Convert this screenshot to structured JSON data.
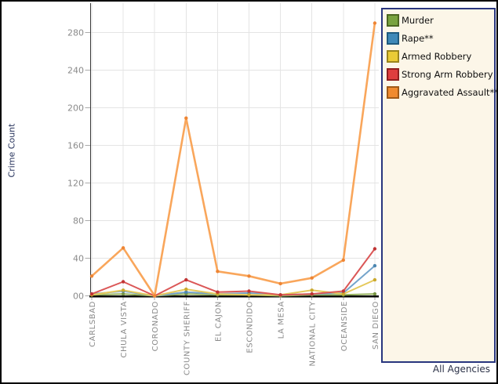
{
  "chart_data": {
    "type": "line",
    "title": "",
    "xlabel": "",
    "ylabel": "Crime Count",
    "categories": [
      "CARLSBAD",
      "CHULA VISTA",
      "CORONADO",
      "COUNTY SHERIFF",
      "EL CAJON",
      "ESCONDIDO",
      "LA MESA",
      "NATIONAL CITY",
      "OCEANSIDE",
      "SAN DIEGO"
    ],
    "series": [
      {
        "name": "Murder",
        "line_color": "#94B05C",
        "marker_color": "#769343",
        "legend_fill": "#79A33F",
        "legend_border": "#4C6722",
        "values": [
          1,
          2,
          0,
          2,
          1,
          1,
          0,
          1,
          1,
          2
        ]
      },
      {
        "name": "Rape**",
        "line_color": "#74A4CB",
        "marker_color": "#4C86B0",
        "legend_fill": "#3F89B8",
        "legend_border": "#205B7E",
        "values": [
          2,
          5,
          0,
          4,
          2,
          3,
          1,
          2,
          3,
          32
        ]
      },
      {
        "name": "Armed Robbery",
        "line_color": "#E5C95B",
        "marker_color": "#CBA92E",
        "legend_fill": "#EACB36",
        "legend_border": "#9A851D",
        "values": [
          1,
          6,
          0,
          7,
          2,
          1,
          1,
          6,
          2,
          17
        ]
      },
      {
        "name": "Strong Arm Robbery",
        "line_color": "#DB5757",
        "marker_color": "#C03434",
        "legend_fill": "#DF3E3E",
        "legend_border": "#8F1F1F",
        "values": [
          2,
          15,
          0,
          17,
          4,
          5,
          1,
          2,
          5,
          50
        ]
      },
      {
        "name": "Aggravated Assault**",
        "line_color": "#F9A65B",
        "marker_color": "#EE8534",
        "legend_fill": "#F08B30",
        "legend_border": "#A05A18",
        "values": [
          21,
          51,
          0,
          189,
          26,
          21,
          13,
          19,
          38,
          290
        ]
      }
    ],
    "y_ticks": [
      {
        "label": "00",
        "value": 0
      },
      {
        "label": "40",
        "value": 40
      },
      {
        "label": "80",
        "value": 80
      },
      {
        "label": "120",
        "value": 120
      },
      {
        "label": "160",
        "value": 160
      },
      {
        "label": "200",
        "value": 200
      },
      {
        "label": "240",
        "value": 240
      },
      {
        "label": "280",
        "value": 280
      }
    ],
    "ylim": [
      0,
      312
    ],
    "grid": true,
    "legend_position": "right"
  },
  "footer": {
    "label": "All Agencies"
  },
  "styles": {
    "legend_bg": "#FCF6E8",
    "legend_border": "#28357E",
    "axis_label_color": "#8A8A8A",
    "axis_title_color": "#27335C",
    "gridline_color": "#E4E4E4",
    "axis_line_color": "#3A3A3A",
    "baseline_color": "#000000",
    "frame_border": "#000000"
  }
}
